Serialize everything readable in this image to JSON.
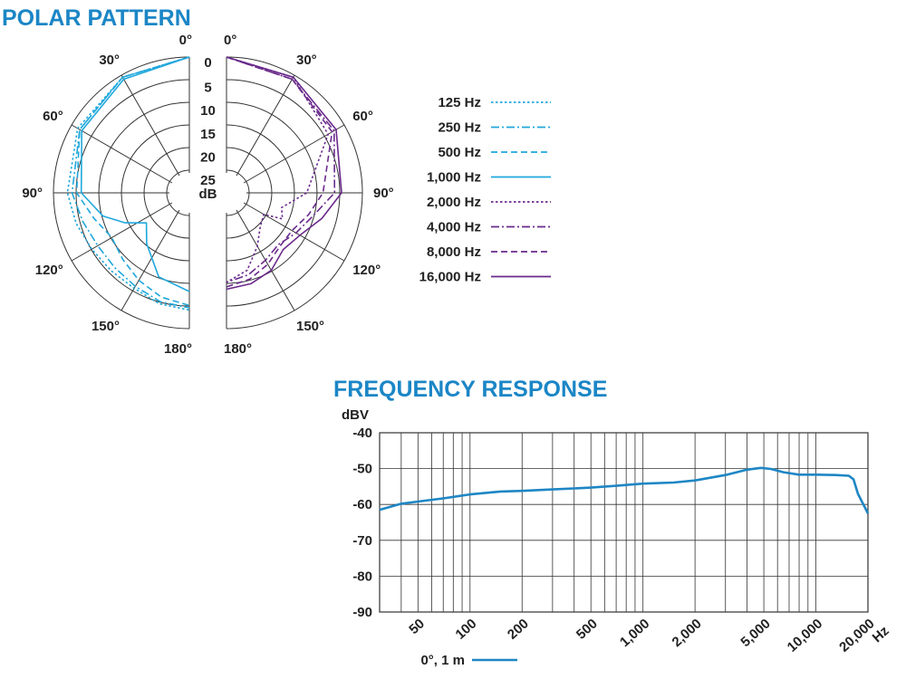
{
  "polar_title": "POLAR PATTERN",
  "freq_title": "FREQUENCY RESPONSE",
  "colors": {
    "title": "#1b86c6",
    "left_curves": "#1fa8dc",
    "right_curves": "#6a2a8c",
    "freq_line": "#1e86c4",
    "grid": "#333333",
    "text": "#222222"
  },
  "chart_data": [
    {
      "type": "polar",
      "title": "POLAR PATTERN",
      "angle_labels_left": [
        "0°",
        "30°",
        "60°",
        "90°",
        "120°",
        "150°",
        "180°"
      ],
      "angle_labels_right": [
        "0°",
        "30°",
        "60°",
        "90°",
        "120°",
        "150°",
        "180°"
      ],
      "angle_values": [
        0,
        30,
        60,
        90,
        120,
        150,
        180
      ],
      "radial_labels": [
        "0",
        "5",
        "10",
        "15",
        "20",
        "25"
      ],
      "radial_values": [
        0,
        5,
        10,
        15,
        20,
        25
      ],
      "radial_unit": "dB",
      "legend": [
        {
          "label": "125 Hz",
          "dash": "dot",
          "group": "left"
        },
        {
          "label": "250 Hz",
          "dash": "dashdot",
          "group": "left"
        },
        {
          "label": "500 Hz",
          "dash": "dash",
          "group": "left"
        },
        {
          "label": "1,000 Hz",
          "dash": "solid",
          "group": "left"
        },
        {
          "label": "2,000 Hz",
          "dash": "dot",
          "group": "right"
        },
        {
          "label": "4,000 Hz",
          "dash": "dashdot",
          "group": "right"
        },
        {
          "label": "8,000 Hz",
          "dash": "dash",
          "group": "right"
        },
        {
          "label": "16,000 Hz",
          "dash": "solid",
          "group": "right"
        }
      ],
      "series": [
        {
          "name": "125 Hz",
          "side": "left",
          "angles": [
            0,
            30,
            60,
            90,
            105,
            120,
            135,
            150,
            165,
            180
          ],
          "db": [
            0,
            0.5,
            1.5,
            3,
            4,
            5,
            5.5,
            5.5,
            4.5,
            4
          ]
        },
        {
          "name": "250 Hz",
          "side": "left",
          "angles": [
            0,
            30,
            60,
            90,
            105,
            120,
            135,
            150,
            165,
            180
          ],
          "db": [
            0,
            0.5,
            2,
            4,
            5.5,
            6.5,
            6.5,
            6,
            5,
            4.5
          ]
        },
        {
          "name": "500 Hz",
          "side": "left",
          "angles": [
            0,
            30,
            60,
            90,
            105,
            120,
            135,
            150,
            165,
            180
          ],
          "db": [
            0,
            0.5,
            2,
            5,
            8,
            10,
            9,
            7.5,
            6,
            5
          ]
        },
        {
          "name": "1,000 Hz",
          "side": "left",
          "angles": [
            0,
            30,
            60,
            90,
            105,
            115,
            125,
            140,
            160,
            180
          ],
          "db": [
            0,
            1,
            2.5,
            6,
            10,
            14,
            18,
            15,
            10,
            8
          ]
        },
        {
          "name": "2,000 Hz",
          "side": "right",
          "angles": [
            0,
            30,
            60,
            90,
            105,
            115,
            120,
            135,
            150,
            165,
            180
          ],
          "db": [
            0,
            0.5,
            4,
            12,
            17,
            16,
            20,
            19,
            16,
            12,
            10
          ]
        },
        {
          "name": "4,000 Hz",
          "side": "right",
          "angles": [
            0,
            30,
            60,
            90,
            105,
            120,
            135,
            150,
            165,
            180
          ],
          "db": [
            0,
            1,
            2.5,
            6,
            10,
            12,
            13.5,
            12.5,
            11,
            10
          ]
        },
        {
          "name": "8,000 Hz",
          "side": "right",
          "angles": [
            0,
            30,
            60,
            90,
            105,
            120,
            135,
            150,
            165,
            180
          ],
          "db": [
            0,
            1,
            3,
            8.5,
            11,
            13,
            13,
            11.5,
            10,
            9
          ]
        },
        {
          "name": "16,000 Hz",
          "side": "right",
          "angles": [
            0,
            30,
            60,
            90,
            105,
            120,
            135,
            150,
            165,
            180
          ],
          "db": [
            0,
            0.5,
            2,
            4.5,
            8,
            11,
            12,
            10,
            9,
            8.5
          ]
        }
      ]
    },
    {
      "type": "line",
      "title": "FREQUENCY RESPONSE",
      "ylabel": "dBV",
      "xlabel": "Hz",
      "xscale": "log",
      "xlim": [
        30,
        20000
      ],
      "ylim": [
        -90,
        -40
      ],
      "yticks": [
        -40,
        -50,
        -60,
        -70,
        -80,
        -90
      ],
      "ytick_labels": [
        "-40",
        "-50",
        "-60",
        "-70",
        "-80",
        "-90"
      ],
      "xticks": [
        50,
        100,
        200,
        500,
        1000,
        2000,
        5000,
        10000,
        20000
      ],
      "xtick_labels": [
        "50",
        "100",
        "200",
        "500",
        "1,000",
        "2,000",
        "5,000",
        "10,000",
        "20,000"
      ],
      "legend_label": "0°, 1 m",
      "x": [
        30,
        40,
        50,
        70,
        100,
        150,
        200,
        300,
        500,
        700,
        1000,
        1500,
        2000,
        3000,
        4000,
        4800,
        5500,
        6500,
        8000,
        10000,
        13000,
        15500,
        16500,
        17500,
        20000
      ],
      "y": [
        -61.5,
        -59.8,
        -59.2,
        -58.3,
        -57.2,
        -56.4,
        -56.2,
        -55.8,
        -55.3,
        -54.8,
        -54.2,
        -53.9,
        -53.3,
        -51.8,
        -50.3,
        -49.8,
        -50.1,
        -51.0,
        -51.7,
        -51.7,
        -51.8,
        -52.0,
        -53.0,
        -57.0,
        -62.5
      ]
    }
  ]
}
